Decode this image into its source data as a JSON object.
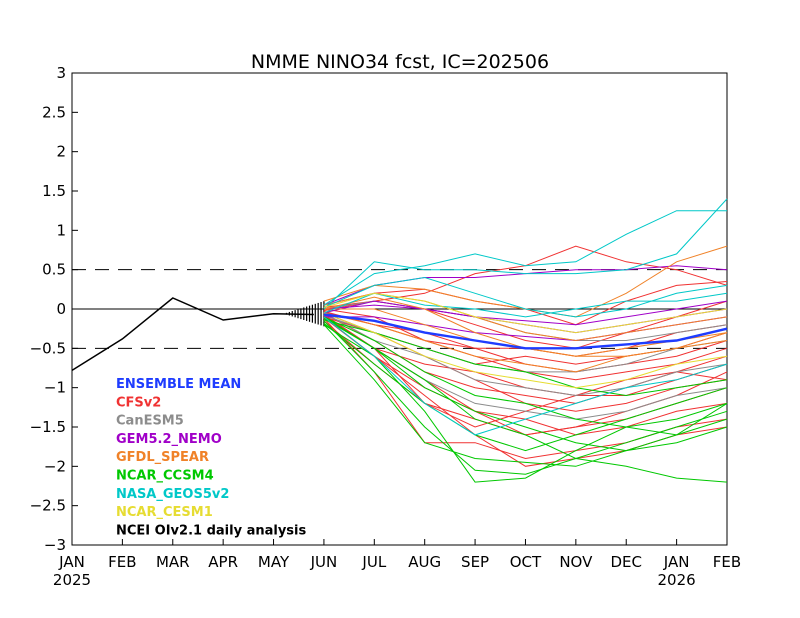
{
  "chart_data": {
    "type": "line",
    "title": "NMME NINO34 fcst, IC=202506",
    "xlabel": "",
    "ylabel": "",
    "x_labels": [
      "JAN",
      "FEB",
      "MAR",
      "APR",
      "MAY",
      "JUN",
      "JUL",
      "AUG",
      "SEP",
      "OCT",
      "NOV",
      "DEC",
      "JAN",
      "FEB"
    ],
    "year_labels": [
      {
        "index": 0,
        "text": "2025"
      },
      {
        "index": 12,
        "text": "2026"
      }
    ],
    "ylim": [
      -3,
      3
    ],
    "yticks": [
      -3,
      -2.5,
      -2,
      -1.5,
      -1,
      -0.5,
      0,
      0.5,
      1,
      1.5,
      2,
      2.5,
      3
    ],
    "reference_lines": {
      "solid": [
        0
      ],
      "dashed": [
        0.5,
        -0.5
      ]
    },
    "grid": false,
    "legend_position": "bottom-left",
    "legend": [
      {
        "name": "ENSEMBLE MEAN",
        "color": "#1e3cff"
      },
      {
        "name": "CFSv2",
        "color": "#f03232"
      },
      {
        "name": "CanESM5",
        "color": "#8c8c8c"
      },
      {
        "name": "GEM5.2_NEMO",
        "color": "#a000c8"
      },
      {
        "name": "GFDL_SPEAR",
        "color": "#f08228"
      },
      {
        "name": "NCAR_CCSM4",
        "color": "#00c800"
      },
      {
        "name": "NASA_GEOS5v2",
        "color": "#00c8c8"
      },
      {
        "name": "NCAR_CESM1",
        "color": "#e6dc32"
      },
      {
        "name": "NCEI OIv2.1 daily analysis",
        "color": "#000000"
      }
    ],
    "observed": {
      "name": "NCEI OIv2.1 daily analysis",
      "color": "#000000",
      "x": [
        0,
        1,
        2,
        3,
        4,
        4.8
      ],
      "y": [
        -0.78,
        -0.38,
        0.14,
        -0.14,
        -0.06,
        -0.07
      ]
    },
    "series": [
      {
        "model": "CFSv2",
        "color": "#f03232",
        "y": [
          -0.07,
          -0.5,
          -0.9,
          -1.3,
          -1.6,
          -1.5,
          -1.4,
          -1.2,
          -1.0
        ]
      },
      {
        "model": "CFSv2",
        "color": "#f03232",
        "y": [
          -0.12,
          -0.8,
          -1.7,
          -1.7,
          -1.9,
          -1.8,
          -1.7,
          -1.5,
          -1.4
        ]
      },
      {
        "model": "CFSv2",
        "color": "#f03232",
        "y": [
          -0.05,
          -0.3,
          -0.6,
          -0.9,
          -1.2,
          -1.3,
          -1.2,
          -1.0,
          -0.9
        ]
      },
      {
        "model": "CFSv2",
        "color": "#f03232",
        "y": [
          0.0,
          -0.1,
          -0.4,
          -0.6,
          -0.8,
          -0.9,
          -0.8,
          -0.7,
          -0.5
        ]
      },
      {
        "model": "CFSv2",
        "color": "#f03232",
        "y": [
          -0.1,
          -0.6,
          -1.1,
          -1.6,
          -2.0,
          -1.9,
          -1.8,
          -1.6,
          -1.5
        ]
      },
      {
        "model": "CFSv2",
        "color": "#f03232",
        "y": [
          -0.02,
          0.1,
          0.2,
          0.45,
          0.55,
          0.8,
          0.6,
          0.5,
          0.3
        ]
      },
      {
        "model": "CFSv2",
        "color": "#f03232",
        "y": [
          0.02,
          0.1,
          0.0,
          -0.2,
          -0.4,
          -0.5,
          -0.3,
          -0.1,
          0.1
        ]
      },
      {
        "model": "CFSv2",
        "color": "#f03232",
        "y": [
          -0.15,
          -0.7,
          -1.2,
          -1.4,
          -1.6,
          -1.5,
          -1.3,
          -1.1,
          -0.8
        ]
      },
      {
        "model": "CFSv2",
        "color": "#f03232",
        "y": [
          -0.06,
          -0.4,
          -0.8,
          -1.0,
          -1.1,
          -1.2,
          -1.0,
          -0.8,
          -0.6
        ]
      },
      {
        "model": "CFSv2",
        "color": "#f03232",
        "y": [
          -0.08,
          -0.5,
          -0.7,
          -0.8,
          -1.0,
          -1.1,
          -1.1,
          -0.9,
          -0.7
        ]
      },
      {
        "model": "CFSv2",
        "color": "#f03232",
        "y": [
          -0.1,
          -0.3,
          -0.5,
          -0.7,
          -0.6,
          -0.7,
          -0.6,
          -0.5,
          -0.3
        ]
      },
      {
        "model": "CFSv2",
        "color": "#f03232",
        "y": [
          0.05,
          0.2,
          0.25,
          0.1,
          0.0,
          -0.2,
          0.1,
          0.3,
          0.35
        ]
      },
      {
        "model": "CFSv2",
        "color": "#f03232",
        "y": [
          -0.04,
          -0.2,
          -0.3,
          -0.5,
          -0.5,
          -0.6,
          -0.5,
          -0.3,
          -0.2
        ]
      },
      {
        "model": "CFSv2",
        "color": "#f03232",
        "y": [
          -0.11,
          -0.6,
          -1.0,
          -1.3,
          -1.4,
          -1.6,
          -1.5,
          -1.3,
          -1.2
        ]
      },
      {
        "model": "CFSv2",
        "color": "#f03232",
        "y": [
          -0.03,
          -0.2,
          -0.4,
          -0.5,
          -0.7,
          -0.8,
          -0.7,
          -0.6,
          -0.4
        ]
      },
      {
        "model": "CFSv2",
        "color": "#f03232",
        "y": [
          -0.09,
          -0.5,
          -1.2,
          -1.5,
          -1.3,
          -1.1,
          -0.9,
          -0.8,
          -0.9
        ]
      },
      {
        "model": "CanESM5",
        "color": "#8c8c8c",
        "y": [
          -0.08,
          -0.3,
          -0.5,
          -0.7,
          -0.8,
          -0.8,
          -0.7,
          -0.5,
          -0.4
        ]
      },
      {
        "model": "CanESM5",
        "color": "#8c8c8c",
        "y": [
          -0.1,
          -0.5,
          -0.9,
          -1.2,
          -1.3,
          -1.4,
          -1.3,
          -1.1,
          -1.0
        ]
      },
      {
        "model": "CanESM5",
        "color": "#8c8c8c",
        "y": [
          0.0,
          0.1,
          0.0,
          -0.1,
          -0.3,
          -0.4,
          -0.4,
          -0.3,
          -0.2
        ]
      },
      {
        "model": "CanESM5",
        "color": "#8c8c8c",
        "y": [
          -0.05,
          -0.4,
          -0.6,
          -0.9,
          -1.0,
          -1.1,
          -1.0,
          -0.8,
          -0.7
        ]
      },
      {
        "model": "GEM5.2_NEMO",
        "color": "#a000c8",
        "y": [
          -0.05,
          0.1,
          0.0,
          -0.1,
          -0.2,
          -0.3,
          -0.2,
          -0.1,
          0.0
        ]
      },
      {
        "model": "GEM5.2_NEMO",
        "color": "#a000c8",
        "y": [
          0.05,
          0.3,
          0.4,
          0.4,
          0.45,
          0.5,
          0.5,
          0.55,
          0.5
        ]
      },
      {
        "model": "GEM5.2_NEMO",
        "color": "#a000c8",
        "y": [
          -0.1,
          -0.1,
          -0.2,
          -0.3,
          -0.35,
          -0.4,
          -0.3,
          -0.2,
          -0.1
        ]
      },
      {
        "model": "GEM5.2_NEMO",
        "color": "#a000c8",
        "y": [
          0.0,
          0.05,
          0.0,
          -0.1,
          -0.15,
          -0.2,
          -0.1,
          0.0,
          0.1
        ]
      },
      {
        "model": "GFDL_SPEAR",
        "color": "#f08228",
        "y": [
          0.05,
          0.2,
          0.1,
          -0.1,
          -0.3,
          -0.4,
          -0.3,
          -0.2,
          -0.1
        ]
      },
      {
        "model": "GFDL_SPEAR",
        "color": "#f08228",
        "y": [
          -0.05,
          -0.2,
          -0.4,
          -0.6,
          -0.7,
          -0.8,
          -0.6,
          -0.5,
          -0.3
        ]
      },
      {
        "model": "GFDL_SPEAR",
        "color": "#f08228",
        "y": [
          0.1,
          0.3,
          0.25,
          0.1,
          0.0,
          -0.1,
          0.2,
          0.6,
          0.8
        ]
      },
      {
        "model": "GFDL_SPEAR",
        "color": "#f08228",
        "y": [
          0.0,
          0.0,
          -0.2,
          -0.4,
          -0.5,
          -0.6,
          -0.5,
          -0.4,
          -0.3
        ]
      },
      {
        "model": "GFDL_SPEAR",
        "color": "#f08228",
        "y": [
          0.0,
          0.15,
          0.0,
          -0.3,
          -0.5,
          -0.6,
          -0.6,
          -0.5,
          -0.4
        ]
      },
      {
        "model": "NCAR_CCSM4",
        "color": "#00c800",
        "y": [
          -0.2,
          -0.6,
          -1.3,
          -2.2,
          -2.15,
          -1.8,
          -1.5,
          -1.6,
          -1.2
        ]
      },
      {
        "model": "NCAR_CCSM4",
        "color": "#00c800",
        "y": [
          -0.15,
          -0.8,
          -1.5,
          -2.05,
          -2.1,
          -1.9,
          -2.0,
          -2.15,
          -2.2
        ]
      },
      {
        "model": "NCAR_CCSM4",
        "color": "#00c800",
        "y": [
          -0.12,
          -0.5,
          -1.0,
          -1.3,
          -1.5,
          -1.7,
          -1.8,
          -1.7,
          -1.5
        ]
      },
      {
        "model": "NCAR_CCSM4",
        "color": "#00c800",
        "y": [
          -0.1,
          -0.4,
          -0.8,
          -1.1,
          -1.2,
          -1.4,
          -1.5,
          -1.4,
          -1.2
        ]
      },
      {
        "model": "NCAR_CCSM4",
        "color": "#00c800",
        "y": [
          -0.18,
          -0.7,
          -1.2,
          -1.6,
          -1.8,
          -1.6,
          -1.4,
          -1.2,
          -1.0
        ]
      },
      {
        "model": "NCAR_CCSM4",
        "color": "#00c800",
        "y": [
          -0.1,
          -0.5,
          -0.9,
          -1.4,
          -1.6,
          -1.9,
          -1.7,
          -1.5,
          -1.3
        ]
      },
      {
        "model": "NCAR_CCSM4",
        "color": "#00c800",
        "y": [
          -0.14,
          -0.3,
          -0.5,
          -0.7,
          -0.8,
          -1.0,
          -1.1,
          -1.0,
          -0.9
        ]
      },
      {
        "model": "NCAR_CCSM4",
        "color": "#00c800",
        "y": [
          -0.2,
          -0.9,
          -1.7,
          -1.9,
          -1.95,
          -2.0,
          -1.8,
          -1.6,
          -1.4
        ]
      },
      {
        "model": "NASA_GEOS5v2",
        "color": "#00c8c8",
        "y": [
          0.05,
          0.45,
          0.55,
          0.7,
          0.55,
          0.6,
          0.95,
          1.25,
          1.25
        ]
      },
      {
        "model": "NASA_GEOS5v2",
        "color": "#00c8c8",
        "y": [
          0.0,
          0.6,
          0.5,
          0.5,
          0.45,
          0.45,
          0.5,
          0.7,
          1.4
        ]
      },
      {
        "model": "NASA_GEOS5v2",
        "color": "#00c8c8",
        "y": [
          -0.05,
          0.2,
          0.05,
          0.0,
          -0.1,
          0.0,
          0.1,
          0.1,
          0.2
        ]
      },
      {
        "model": "NASA_GEOS5v2",
        "color": "#00c8c8",
        "y": [
          -0.1,
          -0.6,
          -1.2,
          -1.6,
          -1.4,
          -1.2,
          -1.0,
          -0.9,
          -0.7
        ]
      },
      {
        "model": "NASA_GEOS5v2",
        "color": "#00c8c8",
        "y": [
          0.02,
          0.3,
          0.4,
          0.2,
          0.0,
          -0.1,
          0.0,
          0.2,
          0.3
        ]
      },
      {
        "model": "NCAR_CESM1",
        "color": "#e6dc32",
        "y": [
          0.02,
          0.2,
          0.1,
          -0.1,
          -0.2,
          -0.3,
          -0.2,
          -0.1,
          0.0
        ]
      },
      {
        "model": "NCAR_CESM1",
        "color": "#e6dc32",
        "y": [
          -0.05,
          -0.3,
          -0.6,
          -0.8,
          -0.9,
          -1.0,
          -0.9,
          -0.7,
          -0.6
        ]
      }
    ],
    "ensemble_mean": {
      "name": "ENSEMBLE MEAN",
      "color": "#1e3cff",
      "y": [
        -0.07,
        -0.15,
        -0.3,
        -0.4,
        -0.5,
        -0.5,
        -0.45,
        -0.4,
        -0.25
      ]
    },
    "ensemble_start_spread": [
      -0.2,
      0.12
    ]
  }
}
